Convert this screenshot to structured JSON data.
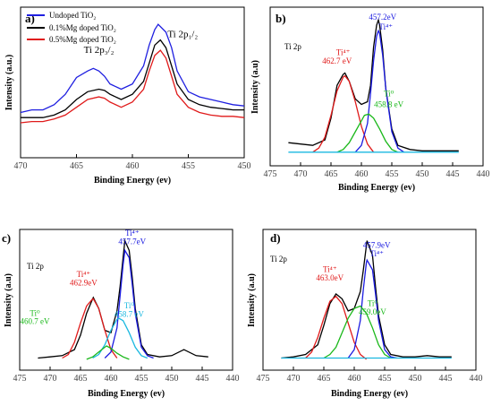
{
  "chart_data": [
    {
      "type": "line",
      "panel_label": "a)",
      "xlabel": "Binding Energy (ev)",
      "ylabel": "Intensity (a.u.)",
      "xlim": [
        470,
        450
      ],
      "x_ticks": [
        470,
        465,
        460,
        455,
        450
      ],
      "legend_position": "top-left",
      "series": [
        {
          "name": "Undoped TiO₂",
          "color": "#1f1fe0",
          "x": [
            470,
            469,
            468,
            467,
            466,
            465,
            464,
            463.5,
            463,
            462.5,
            462,
            461,
            460,
            459,
            458.5,
            458,
            457.7,
            457,
            456.5,
            456,
            455,
            454,
            453,
            452,
            451,
            450
          ],
          "y": [
            0.28,
            0.3,
            0.3,
            0.34,
            0.42,
            0.55,
            0.6,
            0.62,
            0.6,
            0.56,
            0.5,
            0.46,
            0.5,
            0.64,
            0.8,
            0.92,
            0.96,
            0.9,
            0.78,
            0.6,
            0.44,
            0.4,
            0.38,
            0.36,
            0.34,
            0.33
          ]
        },
        {
          "name": "0.1%Mg doped TiO₂",
          "color": "#000000",
          "x": [
            470,
            469,
            468,
            467,
            466,
            465,
            464,
            463,
            462.5,
            462,
            461,
            460,
            459,
            458.5,
            458,
            457.5,
            457,
            456.5,
            456,
            455,
            454,
            453,
            452,
            451,
            450
          ],
          "y": [
            0.24,
            0.24,
            0.24,
            0.26,
            0.3,
            0.38,
            0.44,
            0.46,
            0.45,
            0.42,
            0.38,
            0.42,
            0.52,
            0.66,
            0.8,
            0.84,
            0.78,
            0.64,
            0.5,
            0.38,
            0.34,
            0.32,
            0.31,
            0.3,
            0.3
          ]
        },
        {
          "name": "0.5%Mg doped TiO₂",
          "color": "#e01a1a",
          "x": [
            470,
            469,
            468,
            467,
            466,
            465,
            464,
            463,
            462.5,
            462,
            461,
            460,
            459,
            458.5,
            458,
            457.5,
            457,
            456.5,
            456,
            455,
            454,
            453,
            452,
            451,
            450
          ],
          "y": [
            0.2,
            0.21,
            0.21,
            0.23,
            0.26,
            0.32,
            0.38,
            0.4,
            0.39,
            0.36,
            0.32,
            0.36,
            0.46,
            0.6,
            0.72,
            0.76,
            0.7,
            0.56,
            0.42,
            0.32,
            0.28,
            0.26,
            0.25,
            0.25,
            0.24
          ]
        }
      ],
      "annotations": [
        {
          "text": "Ti 2p₃/₂",
          "x": 463.0,
          "y": 0.74,
          "color": "#000000"
        },
        {
          "text": "Ti 2p₁/₂",
          "x": 455.5,
          "y": 0.86,
          "color": "#000000"
        }
      ]
    },
    {
      "type": "line",
      "panel_label": "b)",
      "tag": "Ti 2p",
      "xlabel": "Binding Energy (ev)",
      "ylabel": "Intensity (a.u)",
      "xlim": [
        475,
        440
      ],
      "x_ticks": [
        475,
        470,
        465,
        460,
        455,
        450,
        445,
        440
      ],
      "series": [
        {
          "color": "#000000",
          "x": [
            472,
            470,
            468,
            466,
            465,
            464,
            463,
            462.7,
            462,
            461,
            460,
            459,
            458.5,
            458,
            457.5,
            457.2,
            457,
            456.5,
            456,
            455,
            454,
            452,
            450,
            448,
            446,
            444
          ],
          "y": [
            0.1,
            0.09,
            0.08,
            0.12,
            0.28,
            0.52,
            0.6,
            0.61,
            0.55,
            0.42,
            0.38,
            0.4,
            0.52,
            0.8,
            0.96,
            1.0,
            0.96,
            0.78,
            0.5,
            0.2,
            0.08,
            0.05,
            0.04,
            0.04,
            0.04,
            0.04
          ]
        },
        {
          "color": "#e01a1a",
          "x": [
            468,
            467,
            466,
            465,
            464,
            463,
            462.7,
            462,
            461,
            460,
            459,
            458
          ],
          "y": [
            0.03,
            0.06,
            0.14,
            0.3,
            0.48,
            0.58,
            0.59,
            0.55,
            0.4,
            0.22,
            0.09,
            0.03
          ]
        },
        {
          "color": "#1a1ae0",
          "x": [
            461,
            460,
            459,
            458.5,
            458,
            457.5,
            457.2,
            457,
            456.5,
            456,
            455,
            454,
            453
          ],
          "y": [
            0.03,
            0.08,
            0.24,
            0.46,
            0.7,
            0.88,
            0.92,
            0.9,
            0.74,
            0.5,
            0.18,
            0.06,
            0.03
          ]
        },
        {
          "color": "#1ab81a",
          "x": [
            464,
            463,
            462,
            461,
            460,
            459.5,
            458.8,
            458,
            457,
            456,
            455,
            454
          ],
          "y": [
            0.03,
            0.05,
            0.1,
            0.18,
            0.26,
            0.3,
            0.31,
            0.28,
            0.2,
            0.11,
            0.05,
            0.03
          ]
        },
        {
          "color": "#1ab8e0",
          "x": [
            472,
            444
          ],
          "y": [
            0.03,
            0.03
          ]
        }
      ],
      "annotations": [
        {
          "text": "457.2eV",
          "x": 456.5,
          "y": 1.0,
          "color": "#1a1ae0"
        },
        {
          "text": "Ti⁴⁺",
          "x": 456.0,
          "y": 0.93,
          "color": "#1a1ae0"
        },
        {
          "text": "Ti⁴⁺",
          "x": 463.0,
          "y": 0.74,
          "color": "#e01a1a"
        },
        {
          "text": "462.7 eV",
          "x": 464.0,
          "y": 0.68,
          "color": "#e01a1a"
        },
        {
          "text": "Ti⁰",
          "x": 455.5,
          "y": 0.44,
          "color": "#1ab81a"
        },
        {
          "text": "458.8 eV",
          "x": 455.5,
          "y": 0.36,
          "color": "#1ab81a"
        }
      ]
    },
    {
      "type": "line",
      "panel_label": "c)",
      "tag": "Ti 2p",
      "xlabel": "Binding Energy (ev)",
      "ylabel": "Intensity (a.u)",
      "xlim": [
        475,
        440
      ],
      "x_ticks": [
        475,
        470,
        465,
        460,
        455,
        450,
        445,
        440
      ],
      "series": [
        {
          "color": "#000000",
          "x": [
            472,
            470,
            468,
            466,
            465,
            464,
            463,
            462.9,
            462,
            461,
            460,
            459,
            458.5,
            458,
            457.7,
            457,
            456.5,
            456,
            455,
            454,
            452,
            450,
            448,
            446,
            444
          ],
          "y": [
            0.03,
            0.04,
            0.05,
            0.1,
            0.22,
            0.4,
            0.52,
            0.53,
            0.44,
            0.26,
            0.24,
            0.42,
            0.62,
            0.86,
            1.0,
            0.92,
            0.7,
            0.44,
            0.14,
            0.06,
            0.04,
            0.05,
            0.1,
            0.05,
            0.04
          ]
        },
        {
          "color": "#e01a1a",
          "x": [
            468,
            467,
            466,
            465,
            464,
            463,
            462.9,
            462,
            461,
            460,
            459
          ],
          "y": [
            0.03,
            0.06,
            0.16,
            0.32,
            0.46,
            0.52,
            0.52,
            0.44,
            0.26,
            0.1,
            0.03
          ]
        },
        {
          "color": "#1a1ae0",
          "x": [
            461,
            460,
            459,
            458.5,
            458,
            457.7,
            457,
            456.5,
            456,
            455,
            454,
            453
          ],
          "y": [
            0.03,
            0.08,
            0.28,
            0.54,
            0.8,
            0.92,
            0.86,
            0.64,
            0.4,
            0.12,
            0.05,
            0.03
          ]
        },
        {
          "color": "#1ab8e0",
          "x": [
            463,
            462,
            461,
            460,
            459,
            458.7,
            458,
            457,
            456,
            455,
            454
          ],
          "y": [
            0.03,
            0.06,
            0.14,
            0.26,
            0.35,
            0.36,
            0.34,
            0.24,
            0.12,
            0.05,
            0.03
          ]
        },
        {
          "color": "#1ab81a",
          "x": [
            464,
            463,
            462,
            461,
            460.7,
            460,
            459,
            458,
            457
          ],
          "y": [
            0.02,
            0.04,
            0.08,
            0.12,
            0.13,
            0.11,
            0.07,
            0.04,
            0.02
          ]
        }
      ],
      "annotations": [
        {
          "text": "Ti⁴⁺",
          "x": 456.5,
          "y": 1.04,
          "color": "#1a1ae0"
        },
        {
          "text": "457.7eV",
          "x": 456.5,
          "y": 0.97,
          "color": "#1a1ae0"
        },
        {
          "text": "Ti⁴⁺",
          "x": 464.5,
          "y": 0.7,
          "color": "#e01a1a"
        },
        {
          "text": "462.9eV",
          "x": 464.5,
          "y": 0.63,
          "color": "#e01a1a"
        },
        {
          "text": "Ti⁰",
          "x": 457.0,
          "y": 0.44,
          "color": "#1ab8e0"
        },
        {
          "text": "458.7 eV",
          "x": 457.0,
          "y": 0.37,
          "color": "#1ab8e0"
        },
        {
          "text": "Ti⁰",
          "x": 472.5,
          "y": 0.38,
          "color": "#1ab81a"
        },
        {
          "text": "460.7 eV",
          "x": 472.5,
          "y": 0.31,
          "color": "#1ab81a"
        }
      ]
    },
    {
      "type": "line",
      "panel_label": "d)",
      "tag": "Ti 2p",
      "xlabel": "Binding Energy (ev)",
      "ylabel": "Intensity (a.u)",
      "xlim": [
        475,
        440
      ],
      "x_ticks": [
        475,
        470,
        465,
        460,
        455,
        450,
        445,
        440
      ],
      "series": [
        {
          "color": "#000000",
          "x": [
            472,
            470,
            468,
            466,
            465,
            464,
            463,
            462,
            461,
            460,
            459,
            458.5,
            458,
            457.9,
            457,
            456.5,
            456,
            455,
            454,
            452,
            450,
            448,
            446,
            444
          ],
          "y": [
            0.03,
            0.04,
            0.06,
            0.14,
            0.3,
            0.48,
            0.56,
            0.52,
            0.42,
            0.44,
            0.58,
            0.76,
            0.96,
            1.0,
            0.88,
            0.62,
            0.38,
            0.14,
            0.06,
            0.04,
            0.04,
            0.05,
            0.04,
            0.04
          ]
        },
        {
          "color": "#e01a1a",
          "x": [
            468,
            467,
            466,
            465,
            464,
            463,
            462,
            461,
            460,
            459,
            458
          ],
          "y": [
            0.03,
            0.08,
            0.2,
            0.36,
            0.5,
            0.54,
            0.48,
            0.32,
            0.16,
            0.06,
            0.02
          ]
        },
        {
          "color": "#1a1ae0",
          "x": [
            461,
            460,
            459,
            458.5,
            458,
            457.9,
            457,
            456.5,
            456,
            455,
            454,
            453
          ],
          "y": [
            0.03,
            0.1,
            0.34,
            0.6,
            0.82,
            0.84,
            0.76,
            0.56,
            0.34,
            0.1,
            0.04,
            0.03
          ]
        },
        {
          "color": "#1ab81a",
          "x": [
            465,
            464,
            463,
            462,
            461,
            460,
            459,
            458,
            457,
            456,
            455,
            454
          ],
          "y": [
            0.03,
            0.06,
            0.12,
            0.24,
            0.36,
            0.44,
            0.46,
            0.4,
            0.28,
            0.14,
            0.06,
            0.03
          ]
        },
        {
          "color": "#1ab8e0",
          "x": [
            472,
            444
          ],
          "y": [
            0.03,
            0.03
          ]
        }
      ],
      "annotations": [
        {
          "text": "457.9eV",
          "x": 456.3,
          "y": 0.94,
          "color": "#1a1ae0"
        },
        {
          "text": "Ti⁴⁺",
          "x": 456.3,
          "y": 0.87,
          "color": "#1a1ae0"
        },
        {
          "text": "Ti⁴⁺",
          "x": 464.0,
          "y": 0.74,
          "color": "#e01a1a"
        },
        {
          "text": "463.0eV",
          "x": 464.0,
          "y": 0.67,
          "color": "#e01a1a"
        },
        {
          "text": "Ti⁰",
          "x": 457.0,
          "y": 0.46,
          "color": "#1ab81a"
        },
        {
          "text": "459.0eV",
          "x": 457.0,
          "y": 0.39,
          "color": "#1ab81a"
        }
      ]
    }
  ]
}
